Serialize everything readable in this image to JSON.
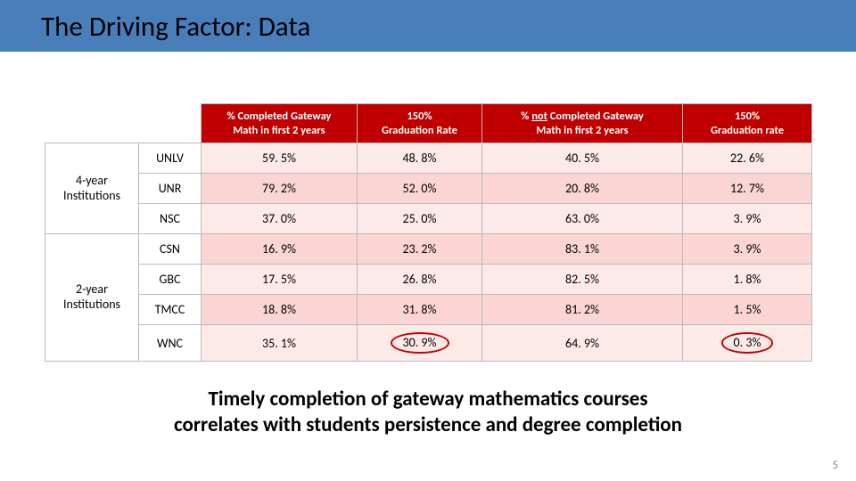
{
  "title": "The Driving Factor: Data",
  "header_bg": "#c00000",
  "header_text_color": "#ffffff",
  "title_bar_color": "#4a7ebb",
  "band_colors": {
    "light": "#fde9e8",
    "dark": "#fbd5d3"
  },
  "circle_border": "#c00000",
  "col_widths": [
    "105px",
    "70px",
    "175px",
    "140px",
    "225px",
    "145px"
  ],
  "columns": {
    "c1": {
      "line1": "% Completed Gateway",
      "line2": "Math in first 2 years"
    },
    "c2": {
      "line1": "150%",
      "line2": "Graduation Rate"
    },
    "c3": {
      "prefix": "% ",
      "underlined": "not",
      "suffix": " Completed Gateway",
      "line2": "Math in first 2 years"
    },
    "c4": {
      "line1": "150%",
      "line2": "Graduation rate"
    }
  },
  "groups": [
    {
      "label_l1": "4-year",
      "label_l2": "Institutions",
      "span": 3
    },
    {
      "label_l1": "2-year",
      "label_l2": "Institutions",
      "span": 4
    }
  ],
  "rows": [
    {
      "inst": "UNLV",
      "v1": "59. 5%",
      "v2": "48. 8%",
      "v3": "40. 5%",
      "v4": "22. 6%",
      "band": "light"
    },
    {
      "inst": "UNR",
      "v1": "79. 2%",
      "v2": "52. 0%",
      "v3": "20. 8%",
      "v4": "12. 7%",
      "band": "dark"
    },
    {
      "inst": "NSC",
      "v1": "37. 0%",
      "v2": "25. 0%",
      "v3": "63. 0%",
      "v4": "3. 9%",
      "band": "light"
    },
    {
      "inst": "CSN",
      "v1": "16. 9%",
      "v2": "23. 2%",
      "v3": "83. 1%",
      "v4": "3. 9%",
      "band": "dark"
    },
    {
      "inst": "GBC",
      "v1": "17. 5%",
      "v2": "26. 8%",
      "v3": "82. 5%",
      "v4": "1. 8%",
      "band": "light"
    },
    {
      "inst": "TMCC",
      "v1": "18. 8%",
      "v2": "31. 8%",
      "v3": "81. 2%",
      "v4": "1. 5%",
      "band": "dark"
    },
    {
      "inst": "WNC",
      "v1": "35. 1%",
      "v2": "30. 9%",
      "v3": "64. 9%",
      "v4": "0. 3%",
      "band": "light",
      "circle2": true,
      "circle4": true
    }
  ],
  "caption_l1": "Timely completion of gateway mathematics courses",
  "caption_l2": "correlates with students persistence and degree completion",
  "page_number": "5"
}
